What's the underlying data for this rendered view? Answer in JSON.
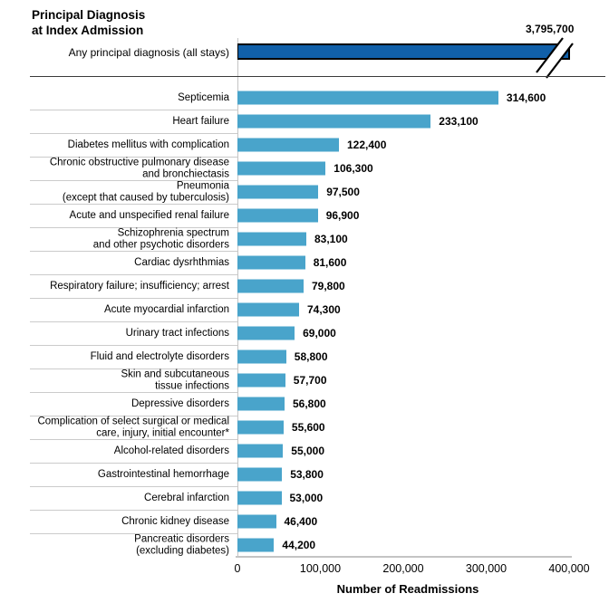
{
  "header": {
    "title_line1": "Principal Diagnosis",
    "title_line2": "at Index Admission"
  },
  "colors": {
    "bar_fill": "#49A4CB",
    "all_stays_fill": "#1160A9",
    "all_stays_border": "#000000",
    "row_separator": "#cbcbcb",
    "axis_line": "#c4c4c4",
    "divider": "#3a3a3a"
  },
  "chart_data": {
    "type": "bar",
    "orientation": "horizontal",
    "title": "Principal Diagnosis at Index Admission",
    "xlabel": "Number of Readmissions",
    "xlim": [
      0,
      400000
    ],
    "x_ticks": [
      0,
      100000,
      200000,
      300000,
      400000
    ],
    "x_tick_labels": [
      "0",
      "100,000",
      "200,000",
      "300,000",
      "400,000"
    ],
    "grid": false,
    "legend": false,
    "highlight_bar": {
      "category": "Any principal diagnosis (all stays)",
      "value": 3795700,
      "value_label": "3,795,700",
      "axis_break": true
    },
    "rows": [
      {
        "label_lines": [
          "Septicemia"
        ],
        "value": 314600,
        "value_label": "314,600"
      },
      {
        "label_lines": [
          "Heart failure"
        ],
        "value": 233100,
        "value_label": "233,100"
      },
      {
        "label_lines": [
          "Diabetes mellitus with complication"
        ],
        "value": 122400,
        "value_label": "122,400"
      },
      {
        "label_lines": [
          "Chronic obstructive pulmonary disease",
          "and bronchiectasis"
        ],
        "value": 106300,
        "value_label": "106,300"
      },
      {
        "label_lines": [
          "Pneumonia",
          "(except that caused by tuberculosis)"
        ],
        "value": 97500,
        "value_label": "97,500"
      },
      {
        "label_lines": [
          "Acute and unspecified renal failure"
        ],
        "value": 96900,
        "value_label": "96,900"
      },
      {
        "label_lines": [
          "Schizophrenia spectrum",
          "and other psychotic disorders"
        ],
        "value": 83100,
        "value_label": "83,100"
      },
      {
        "label_lines": [
          "Cardiac dysrhthmias"
        ],
        "value": 81600,
        "value_label": "81,600"
      },
      {
        "label_lines": [
          "Respiratory failure; insufficiency; arrest"
        ],
        "value": 79800,
        "value_label": "79,800"
      },
      {
        "label_lines": [
          "Acute myocardial infarction"
        ],
        "value": 74300,
        "value_label": "74,300"
      },
      {
        "label_lines": [
          "Urinary tract infections"
        ],
        "value": 69000,
        "value_label": "69,000"
      },
      {
        "label_lines": [
          "Fluid and electrolyte disorders"
        ],
        "value": 58800,
        "value_label": "58,800"
      },
      {
        "label_lines": [
          "Skin and subcutaneous",
          "tissue infections"
        ],
        "value": 57700,
        "value_label": "57,700"
      },
      {
        "label_lines": [
          "Depressive disorders"
        ],
        "value": 56800,
        "value_label": "56,800"
      },
      {
        "label_lines": [
          "Complication of select surgical or medical",
          "care, injury, initial encounter*"
        ],
        "value": 55600,
        "value_label": "55,600"
      },
      {
        "label_lines": [
          "Alcohol-related disorders"
        ],
        "value": 55000,
        "value_label": "55,000"
      },
      {
        "label_lines": [
          "Gastrointestinal hemorrhage"
        ],
        "value": 53800,
        "value_label": "53,800"
      },
      {
        "label_lines": [
          "Cerebral infarction"
        ],
        "value": 53000,
        "value_label": "53,000"
      },
      {
        "label_lines": [
          "Chronic kidney disease"
        ],
        "value": 46400,
        "value_label": "46,400"
      },
      {
        "label_lines": [
          "Pancreatic disorders",
          "(excluding diabetes)"
        ],
        "value": 44200,
        "value_label": "44,200"
      }
    ]
  }
}
